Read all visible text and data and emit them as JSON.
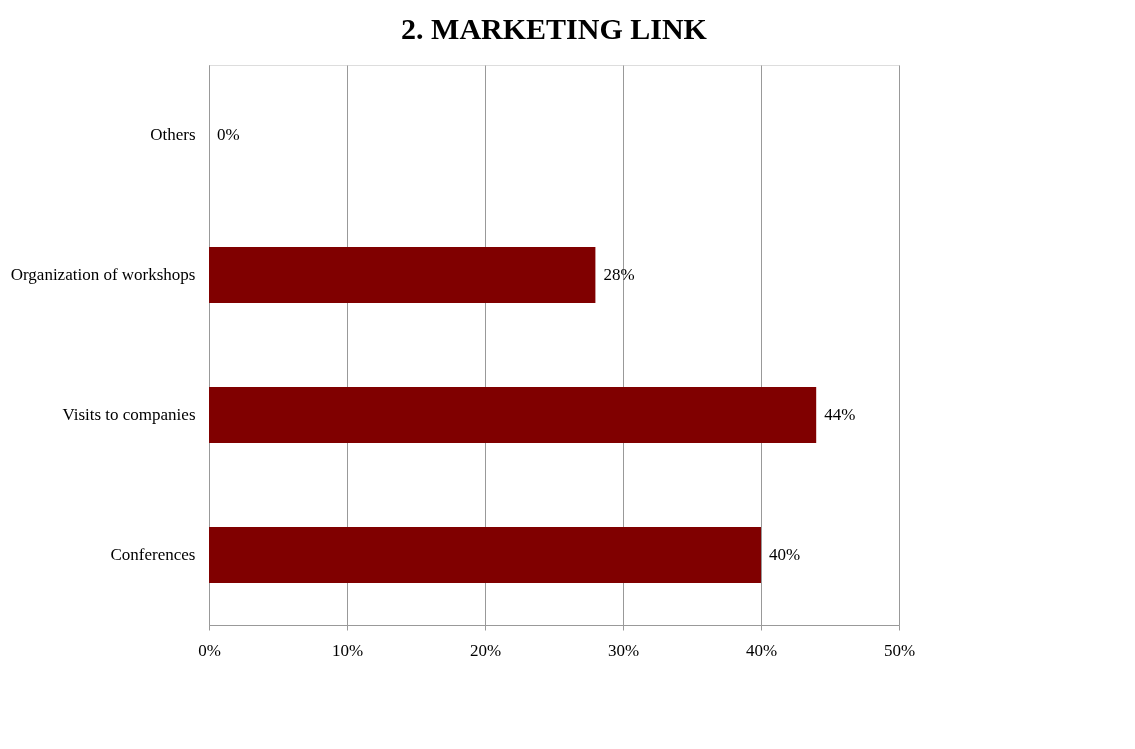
{
  "chart_data": {
    "type": "bar",
    "orientation": "horizontal",
    "title": "2. MARKETING LINK",
    "categories": [
      "Others",
      "Organization of workshops",
      "Visits to companies",
      "Conferences"
    ],
    "values": [
      0,
      28,
      44,
      40
    ],
    "color": "#800000",
    "value_labels": [
      "0%",
      "28%",
      "44%",
      "40%"
    ],
    "xlim": [
      0,
      50
    ],
    "xticks": [
      {
        "value": 0,
        "label": "0%"
      },
      {
        "value": 10,
        "label": "10%"
      },
      {
        "value": 20,
        "label": "20%"
      },
      {
        "value": 30,
        "label": "30%"
      },
      {
        "value": 40,
        "label": "40%"
      },
      {
        "value": 50,
        "label": "50%"
      }
    ],
    "grid": "x"
  }
}
